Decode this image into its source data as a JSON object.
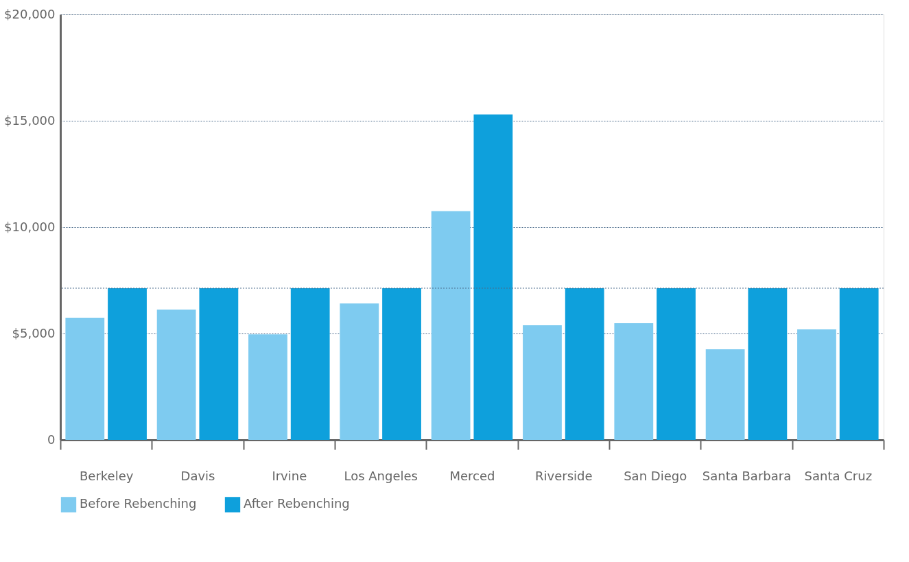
{
  "chart_data": {
    "type": "bar",
    "categories": [
      "Berkeley",
      "Davis",
      "Irvine",
      "Los Angeles",
      "Merced",
      "Riverside",
      "San Diego",
      "Santa Barbara",
      "Santa Cruz"
    ],
    "series": [
      {
        "name": "Before Rebenching",
        "color": "#7ecbf0",
        "values": [
          5740,
          6120,
          4960,
          6410,
          10750,
          5390,
          5480,
          4260,
          5190
        ]
      },
      {
        "name": "After Rebenching",
        "color": "#0ea0dc",
        "values": [
          7130,
          7130,
          7130,
          7130,
          15300,
          7130,
          7130,
          7130,
          7130
        ]
      }
    ],
    "ylim": [
      0,
      20000
    ],
    "yticks": [
      0,
      {
        "value": 5000,
        "label": "$5,000"
      },
      {
        "value": 10000,
        "label": "$10,000"
      },
      {
        "value": 15000,
        "label": "$15,000"
      },
      {
        "value": 20000,
        "label": "$20,000"
      }
    ],
    "ref_lines": [
      {
        "axis": "y",
        "value": 7130
      }
    ],
    "grid": "y",
    "legend": "bottom left"
  }
}
